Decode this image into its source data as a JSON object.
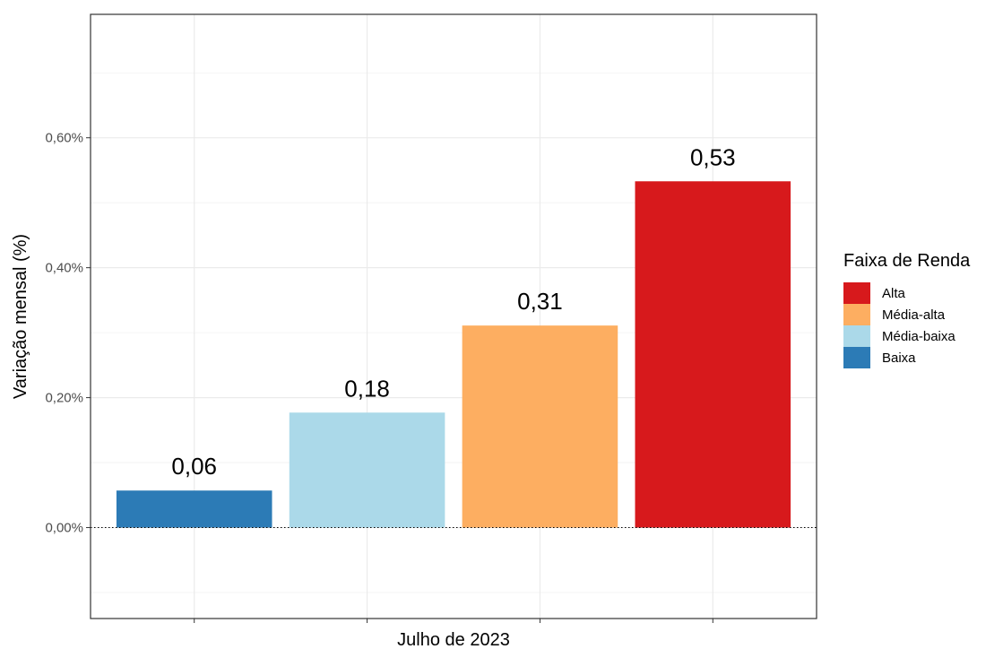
{
  "chart_data": {
    "type": "bar",
    "title": "",
    "xlabel": "Julho de 2023",
    "ylabel": "Variação mensal (%)",
    "ylim": [
      -0.14,
      0.79
    ],
    "yticks": [
      0.0,
      0.2,
      0.4,
      0.6
    ],
    "ytick_labels": [
      "0,00%",
      "0,20%",
      "0,40%",
      "0,60%"
    ],
    "grid": true,
    "reference_line": {
      "y": 0,
      "style": "dotted"
    },
    "legend": {
      "title": "Faixa de Renda",
      "position": "right",
      "entries": [
        "Alta",
        "Média-alta",
        "Média-baixa",
        "Baixa"
      ]
    },
    "series": [
      {
        "name": "Baixa",
        "value": 0.057,
        "label": "0,06",
        "color": "#2c7bb6"
      },
      {
        "name": "Média-baixa",
        "value": 0.177,
        "label": "0,18",
        "color": "#abd9e9"
      },
      {
        "name": "Média-alta",
        "value": 0.311,
        "label": "0,31",
        "color": "#fdae61"
      },
      {
        "name": "Alta",
        "value": 0.533,
        "label": "0,53",
        "color": "#d7191c"
      }
    ]
  }
}
